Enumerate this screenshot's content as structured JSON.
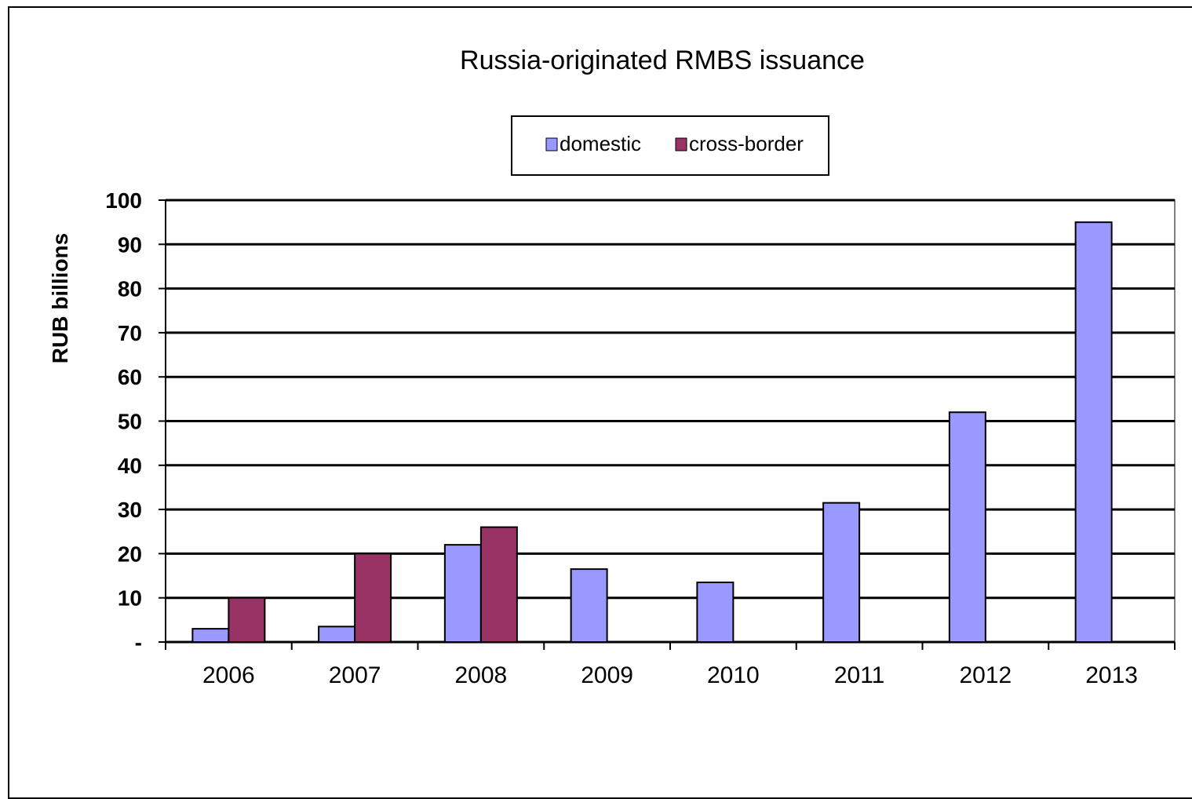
{
  "chart_data": {
    "type": "bar",
    "title": "Russia-originated RMBS issuance",
    "ylabel": "RUB billions",
    "xlabel": "",
    "categories": [
      "2006",
      "2007",
      "2008",
      "2009",
      "2010",
      "2011",
      "2012",
      "2013"
    ],
    "series": [
      {
        "name": "domestic",
        "color": "#9999ff",
        "values": [
          3,
          3.5,
          22,
          16.5,
          13.5,
          31.5,
          52,
          95
        ]
      },
      {
        "name": "cross-border",
        "color": "#993366",
        "values": [
          10,
          20,
          26,
          0,
          0,
          0,
          0,
          0
        ]
      }
    ],
    "ylim": [
      0,
      100
    ],
    "yticks": [
      0,
      10,
      20,
      30,
      40,
      50,
      60,
      70,
      80,
      90,
      100
    ],
    "ytick_labels": [
      "-",
      "10",
      "20",
      "30",
      "40",
      "50",
      "60",
      "70",
      "80",
      "90",
      "100"
    ],
    "grid": true,
    "legend": "top-center"
  }
}
